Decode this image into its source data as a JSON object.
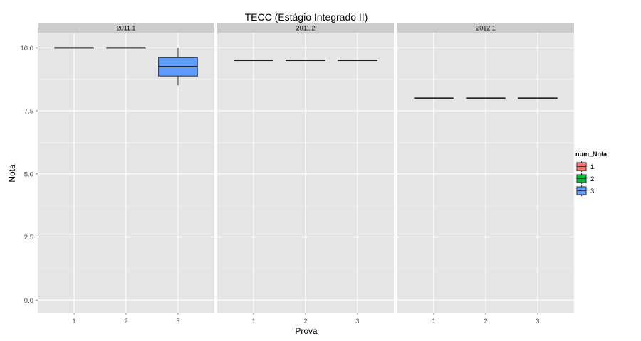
{
  "chart_data": {
    "type": "box",
    "title": "TECC (Estágio Integrado II)",
    "xlabel": "Prova",
    "ylabel": "Nota",
    "ylim": [
      -0.5,
      10.6
    ],
    "yticks": [
      0.0,
      2.5,
      5.0,
      7.5,
      10.0
    ],
    "ytick_labels": [
      "0.0",
      "2.5",
      "5.0",
      "7.5",
      "10.0"
    ],
    "categories": [
      "1",
      "2",
      "3"
    ],
    "grid": true,
    "legend": {
      "title": "num_Nota",
      "position": "right",
      "entries": [
        {
          "label": "1",
          "color": "#F8766D"
        },
        {
          "label": "2",
          "color": "#00BA38"
        },
        {
          "label": "3",
          "color": "#619CFF"
        }
      ]
    },
    "facets": [
      {
        "label": "2011.1",
        "boxes": [
          {
            "x": "1",
            "group": "1",
            "min": 10.0,
            "q1": 10.0,
            "median": 10.0,
            "q3": 10.0,
            "max": 10.0
          },
          {
            "x": "2",
            "group": "2",
            "min": 10.0,
            "q1": 10.0,
            "median": 10.0,
            "q3": 10.0,
            "max": 10.0
          },
          {
            "x": "3",
            "group": "3",
            "min": 8.5,
            "q1": 8.875,
            "median": 9.25,
            "q3": 9.625,
            "max": 10.0
          }
        ]
      },
      {
        "label": "2011.2",
        "boxes": [
          {
            "x": "1",
            "group": "1",
            "min": 9.5,
            "q1": 9.5,
            "median": 9.5,
            "q3": 9.5,
            "max": 9.5
          },
          {
            "x": "2",
            "group": "2",
            "min": 9.5,
            "q1": 9.5,
            "median": 9.5,
            "q3": 9.5,
            "max": 9.5
          },
          {
            "x": "3",
            "group": "3",
            "min": 9.5,
            "q1": 9.5,
            "median": 9.5,
            "q3": 9.5,
            "max": 9.5
          }
        ]
      },
      {
        "label": "2012.1",
        "boxes": [
          {
            "x": "1",
            "group": "1",
            "min": 8.0,
            "q1": 8.0,
            "median": 8.0,
            "q3": 8.0,
            "max": 8.0
          },
          {
            "x": "2",
            "group": "2",
            "min": 8.0,
            "q1": 8.0,
            "median": 8.0,
            "q3": 8.0,
            "max": 8.0
          },
          {
            "x": "3",
            "group": "3",
            "min": 8.0,
            "q1": 8.0,
            "median": 8.0,
            "q3": 8.0,
            "max": 8.0
          }
        ]
      }
    ]
  }
}
